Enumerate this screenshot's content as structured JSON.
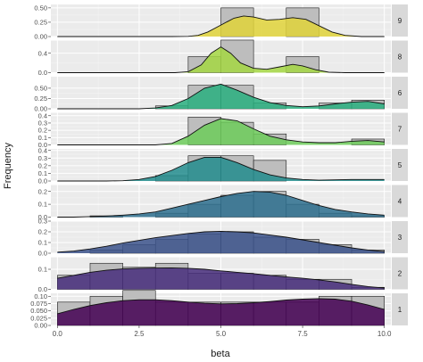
{
  "chart_data": {
    "type": "area",
    "xlabel": "beta",
    "ylabel": "Frequency",
    "xlim": [
      -0.2,
      10.2
    ],
    "x_ticks": [
      0.0,
      2.5,
      5.0,
      7.5,
      10.0
    ],
    "x_tick_labels": [
      "0.0",
      "2.5",
      "5.0",
      "7.5",
      "10.0"
    ],
    "bin_edges": [
      0,
      1,
      2,
      3,
      4,
      5,
      6,
      7,
      8,
      9,
      10
    ],
    "grid": true,
    "legend": "none",
    "panels": [
      {
        "strip": "9",
        "ylim": [
          0,
          0.56
        ],
        "y_ticks": [
          0.0,
          0.25,
          0.5
        ],
        "y_tick_labels": [
          "0.00",
          "0.25",
          "0.50"
        ],
        "hist": [
          0,
          0,
          0,
          0,
          0,
          0.5,
          0,
          0.5,
          0,
          0
        ],
        "density": [
          [
            0,
            0
          ],
          [
            3.5,
            0
          ],
          [
            4,
            0.003
          ],
          [
            4.3,
            0.02
          ],
          [
            4.6,
            0.08
          ],
          [
            5,
            0.2
          ],
          [
            5.4,
            0.32
          ],
          [
            5.7,
            0.36
          ],
          [
            6,
            0.34
          ],
          [
            6.4,
            0.29
          ],
          [
            6.8,
            0.3
          ],
          [
            7.2,
            0.33
          ],
          [
            7.6,
            0.3
          ],
          [
            8,
            0.19
          ],
          [
            8.4,
            0.08
          ],
          [
            8.8,
            0.02
          ],
          [
            9.3,
            0
          ],
          [
            10,
            0
          ]
        ],
        "color": "#e0d43a"
      },
      {
        "strip": "8",
        "ylim": [
          0,
          0.66
        ],
        "y_ticks": [
          0.0,
          0.4
        ],
        "y_tick_labels": [
          "0.0",
          "0.4"
        ],
        "hist": [
          0,
          0,
          0,
          0,
          0.33,
          0.67,
          0,
          0.33,
          0,
          0
        ],
        "density": [
          [
            0,
            0
          ],
          [
            3.6,
            0
          ],
          [
            4,
            0.02
          ],
          [
            4.4,
            0.16
          ],
          [
            4.7,
            0.4
          ],
          [
            5,
            0.53
          ],
          [
            5.3,
            0.4
          ],
          [
            5.6,
            0.2
          ],
          [
            6,
            0.09
          ],
          [
            6.4,
            0.07
          ],
          [
            6.8,
            0.12
          ],
          [
            7.2,
            0.17
          ],
          [
            7.5,
            0.14
          ],
          [
            7.9,
            0.06
          ],
          [
            8.3,
            0.01
          ],
          [
            8.8,
            0
          ],
          [
            10,
            0
          ]
        ],
        "color": "#a5d743"
      },
      {
        "strip": "6",
        "ylim": [
          0,
          0.78
        ],
        "y_ticks": [
          0.0,
          0.25,
          0.5
        ],
        "y_tick_labels": [
          "0.00",
          "0.25",
          "0.50"
        ],
        "hist": [
          0,
          0,
          0,
          0.07,
          0.57,
          0.57,
          0.14,
          0,
          0.14,
          0.21
        ],
        "density": [
          [
            0,
            0
          ],
          [
            2.5,
            0
          ],
          [
            3,
            0.02
          ],
          [
            3.5,
            0.08
          ],
          [
            4,
            0.25
          ],
          [
            4.5,
            0.5
          ],
          [
            5,
            0.6
          ],
          [
            5.5,
            0.45
          ],
          [
            6,
            0.28
          ],
          [
            6.5,
            0.15
          ],
          [
            7,
            0.08
          ],
          [
            7.5,
            0.05
          ],
          [
            8,
            0.07
          ],
          [
            8.5,
            0.12
          ],
          [
            9,
            0.16
          ],
          [
            9.5,
            0.18
          ],
          [
            10,
            0.12
          ]
        ],
        "color": "#29af7f"
      },
      {
        "strip": "7",
        "ylim": [
          0,
          0.44
        ],
        "y_ticks": [
          0.0,
          0.1,
          0.2,
          0.3,
          0.4
        ],
        "y_tick_labels": [
          "0.0",
          "0.1",
          "0.2",
          "0.3",
          "0.4"
        ],
        "hist": [
          0,
          0,
          0,
          0,
          0.38,
          0.31,
          0.15,
          0,
          0,
          0.08
        ],
        "density": [
          [
            0,
            0
          ],
          [
            3,
            0
          ],
          [
            3.5,
            0.02
          ],
          [
            4,
            0.12
          ],
          [
            4.5,
            0.27
          ],
          [
            5,
            0.36
          ],
          [
            5.5,
            0.33
          ],
          [
            6,
            0.22
          ],
          [
            6.5,
            0.12
          ],
          [
            7,
            0.07
          ],
          [
            7.5,
            0.04
          ],
          [
            8,
            0.03
          ],
          [
            8.5,
            0.03
          ],
          [
            9,
            0.05
          ],
          [
            9.5,
            0.06
          ],
          [
            10,
            0.04
          ]
        ],
        "color": "#6dcc5a"
      },
      {
        "strip": "5",
        "ylim": [
          0,
          0.42
        ],
        "y_ticks": [
          0.0,
          0.1,
          0.2,
          0.3,
          0.4
        ],
        "y_tick_labels": [
          "0.0",
          "0.1",
          "0.2",
          "0.3",
          "0.4"
        ],
        "hist": [
          0,
          0,
          0,
          0.07,
          0.33,
          0.33,
          0.27,
          0,
          0,
          0
        ],
        "density": [
          [
            0,
            0
          ],
          [
            1.5,
            0
          ],
          [
            2,
            0.004
          ],
          [
            2.5,
            0.02
          ],
          [
            3,
            0.06
          ],
          [
            3.5,
            0.14
          ],
          [
            4,
            0.24
          ],
          [
            4.5,
            0.31
          ],
          [
            5,
            0.31
          ],
          [
            5.5,
            0.24
          ],
          [
            6,
            0.15
          ],
          [
            6.5,
            0.08
          ],
          [
            7,
            0.04
          ],
          [
            7.5,
            0.02
          ],
          [
            8,
            0.01
          ],
          [
            9,
            0.02
          ],
          [
            10,
            0.02
          ]
        ],
        "color": "#228c8d"
      },
      {
        "strip": "4",
        "ylim": [
          0,
          0.25
        ],
        "y_ticks": [
          0.0,
          0.1,
          0.2
        ],
        "y_tick_labels": [
          "0.0",
          "0.1",
          "0.2"
        ],
        "hist": [
          0,
          0.01,
          0,
          0.03,
          0.1,
          0.17,
          0.2,
          0.1,
          0.03,
          0.01
        ],
        "density": [
          [
            0,
            0
          ],
          [
            0.5,
            0
          ],
          [
            1,
            0.004
          ],
          [
            1.5,
            0.008
          ],
          [
            2,
            0.015
          ],
          [
            2.5,
            0.025
          ],
          [
            3,
            0.04
          ],
          [
            3.5,
            0.07
          ],
          [
            4,
            0.1
          ],
          [
            4.5,
            0.13
          ],
          [
            5,
            0.16
          ],
          [
            5.5,
            0.185
          ],
          [
            6,
            0.2
          ],
          [
            6.5,
            0.195
          ],
          [
            7,
            0.17
          ],
          [
            7.5,
            0.13
          ],
          [
            8,
            0.09
          ],
          [
            8.5,
            0.06
          ],
          [
            9,
            0.04
          ],
          [
            9.5,
            0.025
          ],
          [
            10,
            0.015
          ]
        ],
        "color": "#2d6e8e"
      },
      {
        "strip": "3",
        "ylim": [
          0,
          0.3
        ],
        "y_ticks": [
          0.0,
          0.1,
          0.2,
          0.3
        ],
        "y_tick_labels": [
          "0.0",
          "0.1",
          "0.2",
          "0.3"
        ],
        "hist": [
          0,
          0.03,
          0.08,
          0.13,
          0.18,
          0.2,
          0.15,
          0.13,
          0.08,
          0.03
        ],
        "density": [
          [
            0,
            0.01
          ],
          [
            0.5,
            0.02
          ],
          [
            1,
            0.04
          ],
          [
            1.5,
            0.065
          ],
          [
            2,
            0.095
          ],
          [
            2.5,
            0.12
          ],
          [
            3,
            0.145
          ],
          [
            3.5,
            0.165
          ],
          [
            4,
            0.185
          ],
          [
            4.5,
            0.2
          ],
          [
            5,
            0.205
          ],
          [
            5.5,
            0.2
          ],
          [
            6,
            0.19
          ],
          [
            6.5,
            0.17
          ],
          [
            7,
            0.15
          ],
          [
            7.5,
            0.125
          ],
          [
            8,
            0.1
          ],
          [
            8.5,
            0.075
          ],
          [
            9,
            0.05
          ],
          [
            9.5,
            0.03
          ],
          [
            10,
            0.015
          ]
        ],
        "color": "#3b528b"
      },
      {
        "strip": "2",
        "ylim": [
          0,
          0.16
        ],
        "y_ticks": [
          0.0,
          0.1
        ],
        "y_tick_labels": [
          "0.0",
          "0.1"
        ],
        "hist": [
          0.07,
          0.13,
          0.11,
          0.13,
          0.08,
          0.08,
          0.07,
          0.05,
          0.05,
          0.01
        ],
        "density": [
          [
            0,
            0.055
          ],
          [
            0.5,
            0.07
          ],
          [
            1,
            0.085
          ],
          [
            1.5,
            0.095
          ],
          [
            2,
            0.102
          ],
          [
            2.5,
            0.105
          ],
          [
            3,
            0.106
          ],
          [
            3.5,
            0.107
          ],
          [
            4,
            0.105
          ],
          [
            4.5,
            0.1
          ],
          [
            5,
            0.092
          ],
          [
            5.5,
            0.085
          ],
          [
            6,
            0.078
          ],
          [
            6.5,
            0.07
          ],
          [
            7,
            0.062
          ],
          [
            7.5,
            0.055
          ],
          [
            8,
            0.047
          ],
          [
            8.5,
            0.037
          ],
          [
            9,
            0.025
          ],
          [
            9.5,
            0.014
          ],
          [
            10,
            0.006
          ]
        ],
        "color": "#472d7b"
      },
      {
        "strip": "1",
        "ylim": [
          0,
          0.11
        ],
        "y_ticks": [
          0.0,
          0.025,
          0.05,
          0.075,
          0.1
        ],
        "y_tick_labels": [
          "0.00",
          "0.025",
          "0.050",
          "0.075",
          "0.10"
        ],
        "hist": [
          0.08,
          0.1,
          0.12,
          0.08,
          0.08,
          0.08,
          0.08,
          0.08,
          0.1,
          0.1
        ],
        "density": [
          [
            0,
            0.04
          ],
          [
            0.5,
            0.055
          ],
          [
            1,
            0.068
          ],
          [
            1.5,
            0.078
          ],
          [
            2,
            0.085
          ],
          [
            2.5,
            0.088
          ],
          [
            3,
            0.088
          ],
          [
            3.5,
            0.085
          ],
          [
            4,
            0.08
          ],
          [
            4.5,
            0.076
          ],
          [
            5,
            0.074
          ],
          [
            5.5,
            0.075
          ],
          [
            6,
            0.078
          ],
          [
            6.5,
            0.082
          ],
          [
            7,
            0.087
          ],
          [
            7.5,
            0.09
          ],
          [
            8,
            0.092
          ],
          [
            8.5,
            0.09
          ],
          [
            9,
            0.083
          ],
          [
            9.5,
            0.07
          ],
          [
            10,
            0.055
          ]
        ],
        "color": "#440154"
      }
    ]
  }
}
